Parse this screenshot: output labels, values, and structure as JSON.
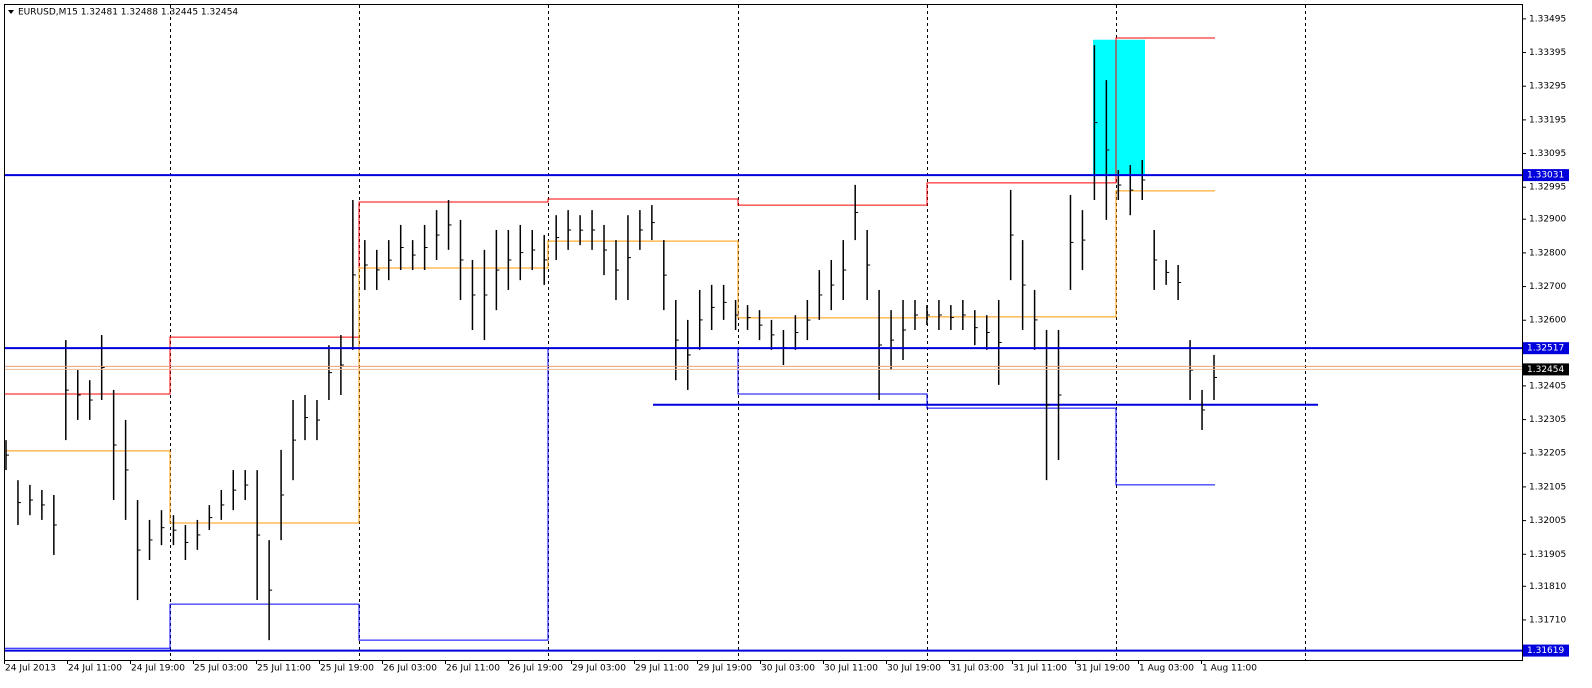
{
  "chart_data": {
    "type": "hilo",
    "title": "EURUSD,M15  1.32481 1.32488 1.32445 1.32454",
    "categories": [
      "24 Jul 2013",
      "24 Jul 11:00",
      "24 Jul 19:00",
      "25 Jul 03:00",
      "25 Jul 11:00",
      "25 Jul 19:00",
      "26 Jul 03:00",
      "26 Jul 11:00",
      "26 Jul 19:00",
      "29 Jul 03:00",
      "29 Jul 11:00",
      "29 Jul 19:00",
      "30 Jul 03:00",
      "30 Jul 11:00",
      "30 Jul 19:00",
      "31 Jul 03:00",
      "31 Jul 11:00",
      "31 Jul 19:00",
      "1 Aug 03:00",
      "1 Aug 11:00"
    ],
    "high": [
      1.32244,
      1.32125,
      1.32111,
      1.32096,
      1.32081,
      1.32541,
      1.32452,
      1.32422,
      1.32556,
      1.32393,
      1.32304,
      1.32066,
      1.32007,
      1.32036,
      1.32021,
      1.31992,
      1.32007,
      1.32051,
      1.32096,
      1.32155,
      1.32155,
      1.32155,
      1.31947,
      1.32215,
      1.32363,
      1.32378,
      1.32363,
      1.32526,
      1.32556,
      1.32957,
      1.32838,
      1.32809,
      1.32838,
      1.32883,
      1.32838,
      1.32883,
      1.32927,
      1.32957,
      1.32898,
      1.32779,
      1.32809,
      1.32868,
      1.32868,
      1.32883,
      1.32868,
      1.32853,
      1.32912,
      1.32927,
      1.32912,
      1.32927,
      1.32883,
      1.32838,
      1.32912,
      1.32927,
      1.32942,
      1.32838,
      1.3266,
      1.32601,
      1.3269,
      1.32705,
      1.32705,
      1.3266,
      1.32645,
      1.3263,
      1.32601,
      1.32571,
      1.32615,
      1.3266,
      1.32749,
      1.32779,
      1.32838,
      1.33002,
      1.32868,
      1.3269,
      1.3263,
      1.3266,
      1.3266,
      1.32645,
      1.3266,
      1.32645,
      1.3266,
      1.3263,
      1.32615,
      1.3266,
      1.32987,
      1.32838,
      1.3269,
      1.32571,
      1.32571,
      1.32972,
      1.32927,
      1.33417,
      1.33313,
      1.33046,
      1.33061,
      1.33076,
      1.32868,
      1.32779,
      1.32764,
      1.32541,
      1.32393,
      1.32497
    ],
    "low": [
      1.32155,
      1.31992,
      1.32021,
      1.32007,
      1.31903,
      1.32244,
      1.32304,
      1.32304,
      1.32363,
      1.32066,
      1.32007,
      1.31769,
      1.31888,
      1.31932,
      1.31932,
      1.31888,
      1.31918,
      1.31977,
      1.32007,
      1.32036,
      1.32066,
      1.31769,
      1.3165,
      1.31947,
      1.32125,
      1.32244,
      1.32244,
      1.32363,
      1.32378,
      1.32512,
      1.3269,
      1.3269,
      1.32719,
      1.32749,
      1.32749,
      1.32749,
      1.32779,
      1.32809,
      1.3266,
      1.32571,
      1.32541,
      1.3263,
      1.3269,
      1.32719,
      1.32749,
      1.32705,
      1.32779,
      1.32809,
      1.32823,
      1.32809,
      1.32734,
      1.3266,
      1.3266,
      1.32809,
      1.32838,
      1.3263,
      1.32422,
      1.32393,
      1.32512,
      1.32571,
      1.32601,
      1.32571,
      1.32571,
      1.32541,
      1.32512,
      1.32467,
      1.32512,
      1.32541,
      1.32601,
      1.3263,
      1.3266,
      1.32838,
      1.3266,
      1.32363,
      1.32452,
      1.32482,
      1.32571,
      1.32586,
      1.32571,
      1.32571,
      1.32571,
      1.32526,
      1.32512,
      1.32408,
      1.32719,
      1.32571,
      1.32512,
      1.32125,
      1.32185,
      1.3269,
      1.32749,
      1.32957,
      1.32898,
      1.32957,
      1.32912,
      1.32957,
      1.3269,
      1.32705,
      1.3266,
      1.32363,
      1.32274,
      1.32363
    ],
    "color": "#000000",
    "ylim": [
      1.31591,
      1.33551
    ],
    "yticks": [
      1.33495,
      1.33395,
      1.33295,
      1.33195,
      1.33095,
      1.32995,
      {
        "value": 1.329,
        "label": "1.32900"
      },
      {
        "value": 1.328,
        "label": "1.32800"
      },
      {
        "value": 1.327,
        "label": "1.32700"
      },
      {
        "value": 1.326,
        "label": "1.32600"
      },
      1.32405,
      1.32305,
      1.32205,
      1.32105,
      1.32005,
      1.31905,
      {
        "value": 1.3181,
        "label": "1.31810"
      },
      {
        "value": 1.3171,
        "label": "1.31710"
      }
    ],
    "pivot_high": {
      "color": "#ff0000",
      "values": [
        1.32381,
        1.3255,
        1.32951,
        1.3296,
        1.32942,
        1.33008,
        1.33438
      ]
    },
    "pivot_mid": {
      "color": "#ff9900",
      "values": [
        1.32212,
        1.31998,
        1.32755,
        1.32835,
        1.32607,
        1.3261,
        1.32984
      ]
    },
    "pivot_low": {
      "color": "#0000ff",
      "values": [
        1.31626,
        1.31757,
        1.3165,
        1.32516,
        1.32381,
        1.32339,
        1.32111
      ]
    },
    "hlines": {
      "color": "#0000dd",
      "values": [
        1.33031,
        1.32517,
        1.31619
      ]
    },
    "support_line": 1.32349,
    "zone": [
      1.33031,
      1.33433
    ],
    "zone_color": "#00ffff",
    "last_price": 1.32454
  }
}
